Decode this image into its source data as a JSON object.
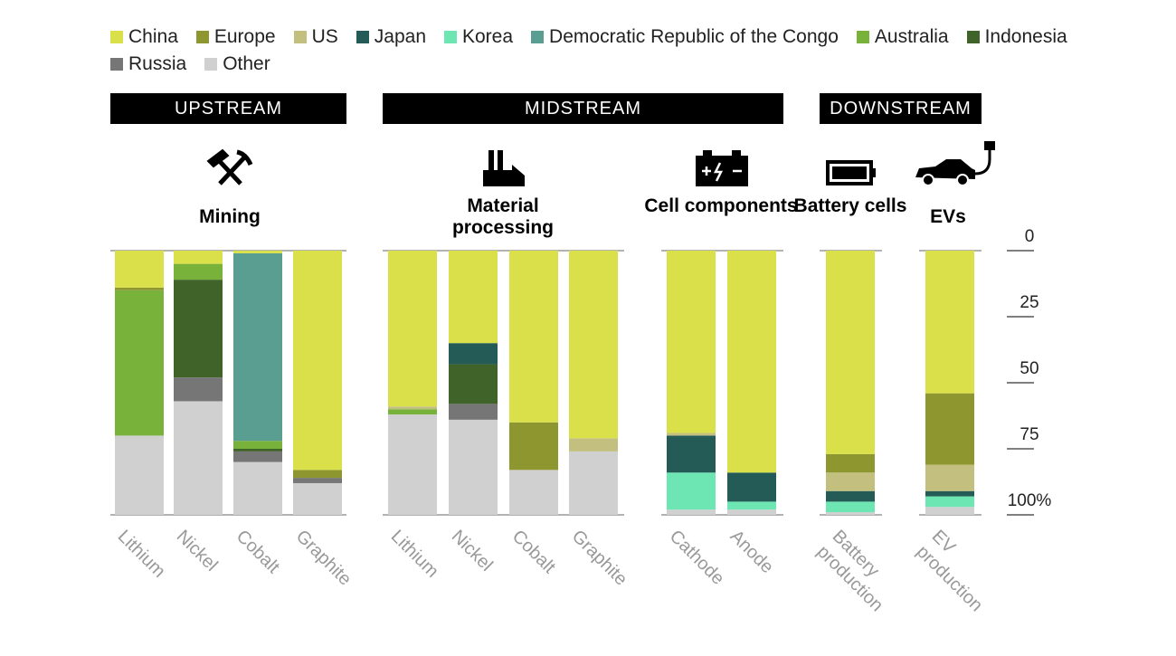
{
  "chart_data": {
    "type": "bar",
    "stacked": true,
    "ylim": [
      0,
      100
    ],
    "y_reversed": true,
    "yticks": [
      0,
      25,
      50,
      75,
      {
        "value": 100,
        "label": "100%"
      }
    ],
    "series": [
      {
        "name": "China",
        "color": "#d9e04a",
        "values": [
          14,
          5,
          1,
          83,
          59,
          35,
          65,
          71,
          69,
          84,
          77,
          54
        ]
      },
      {
        "name": "Europe",
        "color": "#8e9630",
        "values": [
          1,
          null,
          null,
          3,
          null,
          null,
          18,
          null,
          null,
          null,
          7,
          27
        ]
      },
      {
        "name": "US",
        "color": "#c3c07f",
        "values": [
          null,
          null,
          null,
          null,
          1,
          null,
          null,
          5,
          1,
          null,
          7,
          10
        ]
      },
      {
        "name": "Japan",
        "color": "#245b56",
        "values": [
          null,
          null,
          null,
          null,
          null,
          8,
          null,
          null,
          14,
          11,
          4,
          2
        ]
      },
      {
        "name": "Korea",
        "color": "#6ee6b4",
        "values": [
          null,
          null,
          null,
          null,
          null,
          null,
          null,
          null,
          14,
          3,
          4,
          4
        ]
      },
      {
        "name": "Democratic Republic of the Congo",
        "color": "#5a9e92",
        "values": [
          null,
          null,
          71,
          null,
          null,
          null,
          null,
          null,
          null,
          null,
          null,
          null
        ]
      },
      {
        "name": "Australia",
        "color": "#79b23a",
        "values": [
          55,
          6,
          3,
          null,
          2,
          null,
          null,
          null,
          null,
          null,
          null,
          null
        ]
      },
      {
        "name": "Indonesia",
        "color": "#40632a",
        "values": [
          null,
          37,
          1,
          null,
          null,
          15,
          null,
          null,
          null,
          null,
          null,
          null
        ]
      },
      {
        "name": "Russia",
        "color": "#767676",
        "values": [
          null,
          9,
          4,
          2,
          null,
          6,
          null,
          null,
          null,
          null,
          null,
          null
        ]
      },
      {
        "name": "Other",
        "color": "#d0d0d0",
        "values": [
          30,
          43,
          20,
          12,
          38,
          36,
          17,
          24,
          2,
          2,
          1,
          3
        ]
      }
    ],
    "sections": [
      {
        "label": "UPSTREAM",
        "stages": [
          {
            "label": "Mining",
            "categories": [
              "Lithium",
              "Nickel",
              "Cobalt",
              "Graphite"
            ]
          }
        ]
      },
      {
        "label": "MIDSTREAM",
        "stages": [
          {
            "label": "Material processing",
            "categories": [
              "Lithium",
              "Nickel",
              "Cobalt",
              "Graphite"
            ]
          },
          {
            "label": "Cell components",
            "categories": [
              "Cathode",
              "Anode"
            ]
          }
        ]
      },
      {
        "label": "DOWNSTREAM",
        "stages": [
          {
            "label": "Battery cells",
            "categories": [
              "Battery production"
            ]
          },
          {
            "label": "EVs",
            "categories": [
              "EV production"
            ]
          }
        ]
      }
    ]
  }
}
